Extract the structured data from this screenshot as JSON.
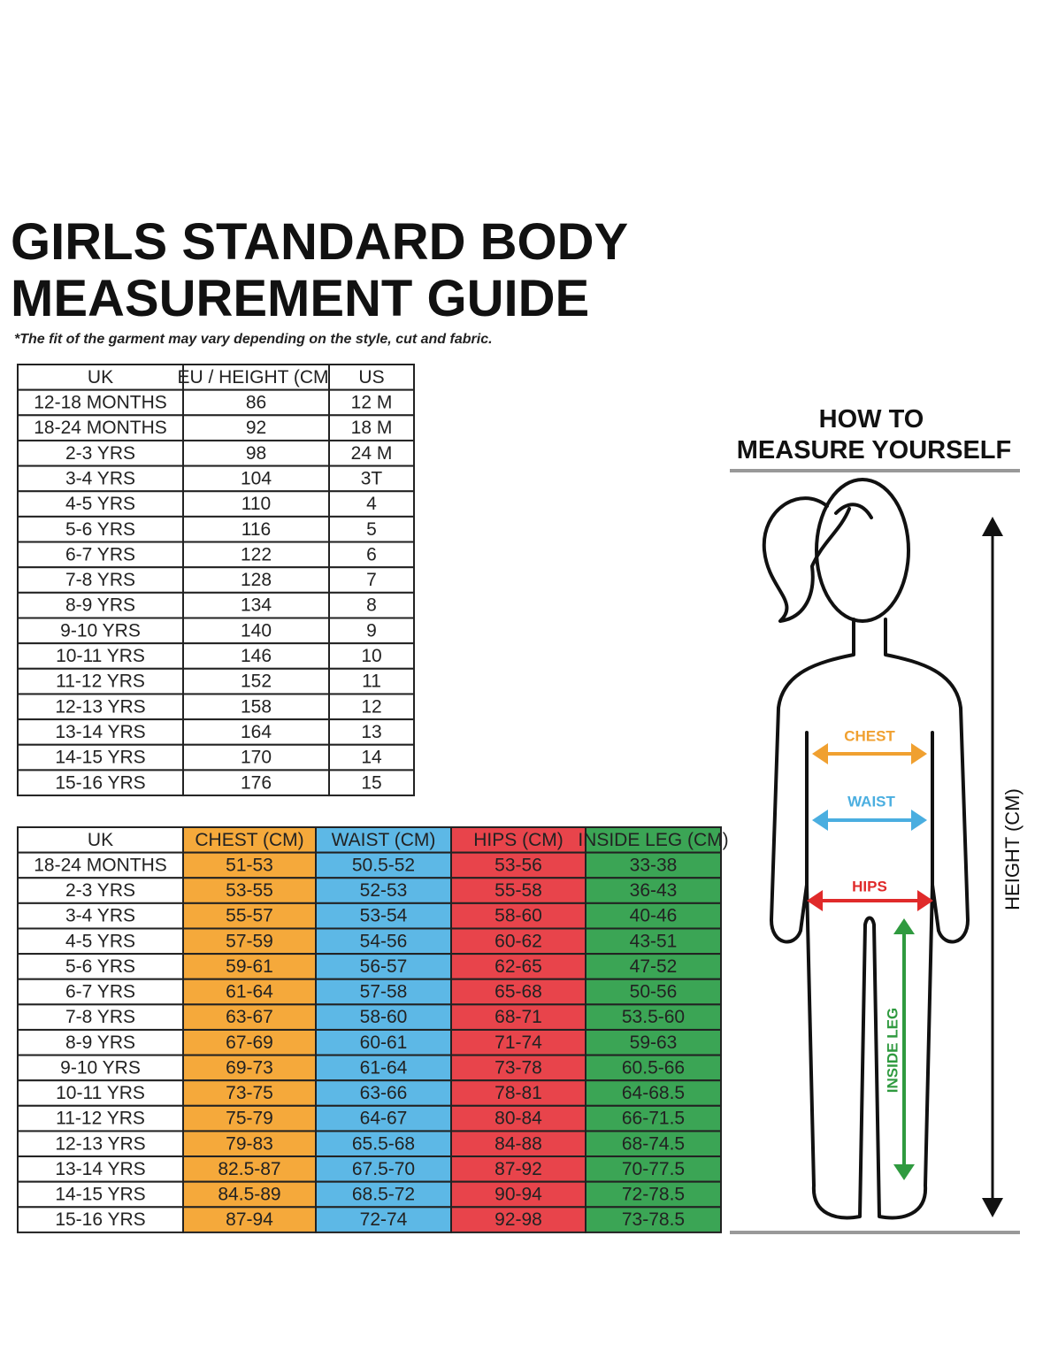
{
  "title_lines": [
    "GIRLS STANDARD BODY",
    "MEASUREMENT GUIDE"
  ],
  "note": "*The fit of the garment may vary depending on the style, cut and fabric.",
  "size_table": {
    "header": [
      "UK",
      "EU / HEIGHT (CM)",
      "US"
    ],
    "rows": [
      [
        "12-18 MONTHS",
        "86",
        "12 M"
      ],
      [
        "18-24 MONTHS",
        "92",
        "18 M"
      ],
      [
        "2-3 YRS",
        "98",
        "24 M"
      ],
      [
        "3-4 YRS",
        "104",
        "3T"
      ],
      [
        "4-5 YRS",
        "110",
        "4"
      ],
      [
        "5-6 YRS",
        "116",
        "5"
      ],
      [
        "6-7 YRS",
        "122",
        "6"
      ],
      [
        "7-8 YRS",
        "128",
        "7"
      ],
      [
        "8-9 YRS",
        "134",
        "8"
      ],
      [
        "9-10 YRS",
        "140",
        "9"
      ],
      [
        "10-11 YRS",
        "146",
        "10"
      ],
      [
        "11-12 YRS",
        "152",
        "11"
      ],
      [
        "12-13 YRS",
        "158",
        "12"
      ],
      [
        "13-14 YRS",
        "164",
        "13"
      ],
      [
        "14-15 YRS",
        "170",
        "14"
      ],
      [
        "15-16 YRS",
        "176",
        "15"
      ]
    ]
  },
  "measure_table": {
    "header": [
      "UK",
      "CHEST (CM)",
      "WAIST (CM)",
      "HIPS (CM)",
      "INSIDE LEG (CM)"
    ],
    "rows": [
      [
        "18-24 MONTHS",
        "51-53",
        "50.5-52",
        "53-56",
        "33-38"
      ],
      [
        "2-3 YRS",
        "53-55",
        "52-53",
        "55-58",
        "36-43"
      ],
      [
        "3-4 YRS",
        "55-57",
        "53-54",
        "58-60",
        "40-46"
      ],
      [
        "4-5 YRS",
        "57-59",
        "54-56",
        "60-62",
        "43-51"
      ],
      [
        "5-6 YRS",
        "59-61",
        "56-57",
        "62-65",
        "47-52"
      ],
      [
        "6-7 YRS",
        "61-64",
        "57-58",
        "65-68",
        "50-56"
      ],
      [
        "7-8 YRS",
        "63-67",
        "58-60",
        "68-71",
        "53.5-60"
      ],
      [
        "8-9 YRS",
        "67-69",
        "60-61",
        "71-74",
        "59-63"
      ],
      [
        "9-10 YRS",
        "69-73",
        "61-64",
        "73-78",
        "60.5-66"
      ],
      [
        "10-11 YRS",
        "73-75",
        "63-66",
        "78-81",
        "64-68.5"
      ],
      [
        "11-12 YRS",
        "75-79",
        "64-67",
        "80-84",
        "66-71.5"
      ],
      [
        "12-13 YRS",
        "79-83",
        "65.5-68",
        "84-88",
        "68-74.5"
      ],
      [
        "13-14 YRS",
        "82.5-87",
        "67.5-70",
        "87-92",
        "70-77.5"
      ],
      [
        "14-15 YRS",
        "84.5-89",
        "68.5-72",
        "90-94",
        "72-78.5"
      ],
      [
        "15-16 YRS",
        "87-94",
        "72-74",
        "92-98",
        "73-78.5"
      ]
    ]
  },
  "diagram": {
    "title_lines": [
      "HOW TO",
      "MEASURE YOURSELF"
    ],
    "chest": "CHEST",
    "waist": "WAIST",
    "hips": "HIPS",
    "inside_leg": "INSIDE LEG",
    "height": "HEIGHT (CM)"
  }
}
